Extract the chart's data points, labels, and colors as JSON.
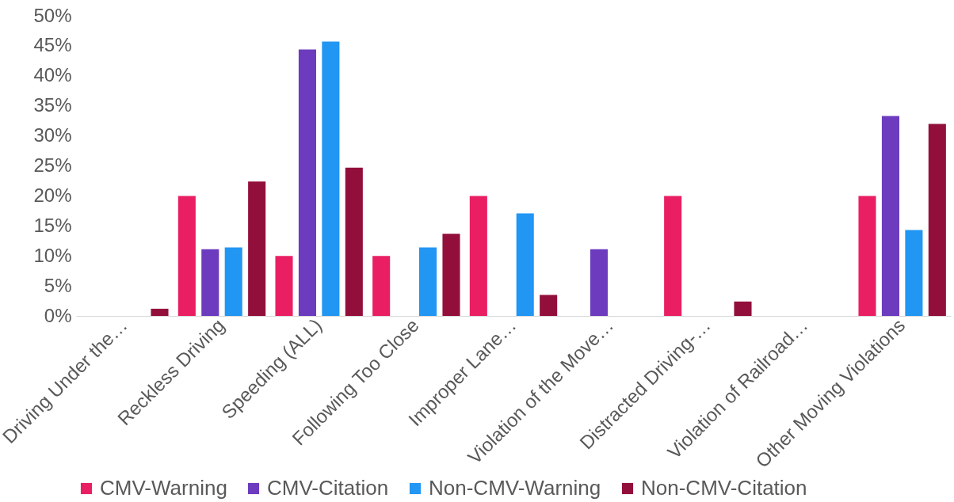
{
  "chart_data": {
    "type": "bar",
    "categories": [
      "Driving Under the…",
      "Reckless Driving",
      "Speeding (ALL)",
      "Following Too Close",
      "Improper Lane…",
      "Violation of the Move…",
      "Distracted Driving-…",
      "Violation of Railroad…",
      "Other Moving Violations"
    ],
    "series": [
      {
        "name": "CMV-Warning",
        "color": "#ea1f63",
        "values": [
          0,
          20,
          10,
          10,
          20,
          0,
          20,
          0,
          20
        ]
      },
      {
        "name": "CMV-Citation",
        "color": "#6c3bbe",
        "values": [
          0,
          11.1,
          44.4,
          0,
          0,
          11.1,
          0,
          0,
          33.3
        ]
      },
      {
        "name": "Non-CMV-Warning",
        "color": "#2196f3",
        "values": [
          0,
          11.4,
          45.7,
          11.4,
          17.1,
          0,
          0,
          0,
          14.3
        ]
      },
      {
        "name": "Non-CMV-Citation",
        "color": "#930f3b",
        "values": [
          1.2,
          22.4,
          24.7,
          13.7,
          3.5,
          0,
          2.4,
          0,
          32
        ]
      }
    ],
    "ylim": [
      0,
      50
    ],
    "yticks": [
      {
        "value": 0,
        "label": "0%"
      },
      {
        "value": 5,
        "label": "5%"
      },
      {
        "value": 10,
        "label": "10%"
      },
      {
        "value": 15,
        "label": "15%"
      },
      {
        "value": 20,
        "label": "20%"
      },
      {
        "value": 25,
        "label": "25%"
      },
      {
        "value": 30,
        "label": "30%"
      },
      {
        "value": 35,
        "label": "35%"
      },
      {
        "value": 40,
        "label": "40%"
      },
      {
        "value": 45,
        "label": "45%"
      },
      {
        "value": 50,
        "label": "50%"
      }
    ],
    "grid": false,
    "legend": "bottom"
  }
}
